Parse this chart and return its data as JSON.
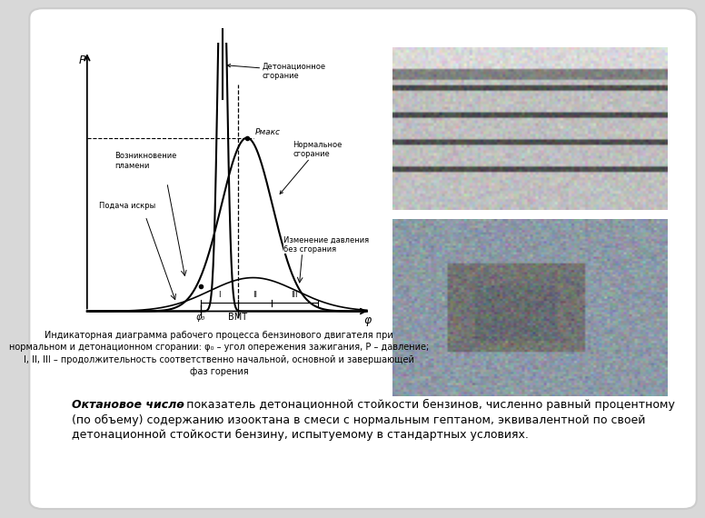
{
  "bg_color": "#d8d8d8",
  "card_color": "#ffffff",
  "diagram_caption_line1": "Индикаторная диаграмма рабочего процесса бензинового двигателя при",
  "diagram_caption_line2": "нормальном и детонационном сгорании: φ₀ – угол опережения зажигания, P – давление;",
  "diagram_caption_line3": "I, II, III – продолжительность соответственно начальной, основной и завершающей",
  "diagram_caption_line4": "фаз горения",
  "bottom_bold": "Октановое число",
  "bottom_normal": " – показатель детонационной стойкости бензинов, численно равный процентному",
  "bottom_line2": "(по объему) содержанию изооктана в смеси с нормальным гептаном, эквивалентной по своей",
  "bottom_line3": "детонационной стойкости бензину, испытуемому в стандартных условиях.",
  "label_det": "Детонационное\nсгорание",
  "label_norm": "Нормальное\nсгорание",
  "label_pmax": "Pмакс",
  "label_flame": "Возникновение\nпламени",
  "label_spark": "Подача искры",
  "label_nocomb": "Изменение давления\nбез сгорания",
  "label_bmt": "ВМТ",
  "label_phi": "φ",
  "label_P": "P",
  "label_phi0": "φ₀"
}
